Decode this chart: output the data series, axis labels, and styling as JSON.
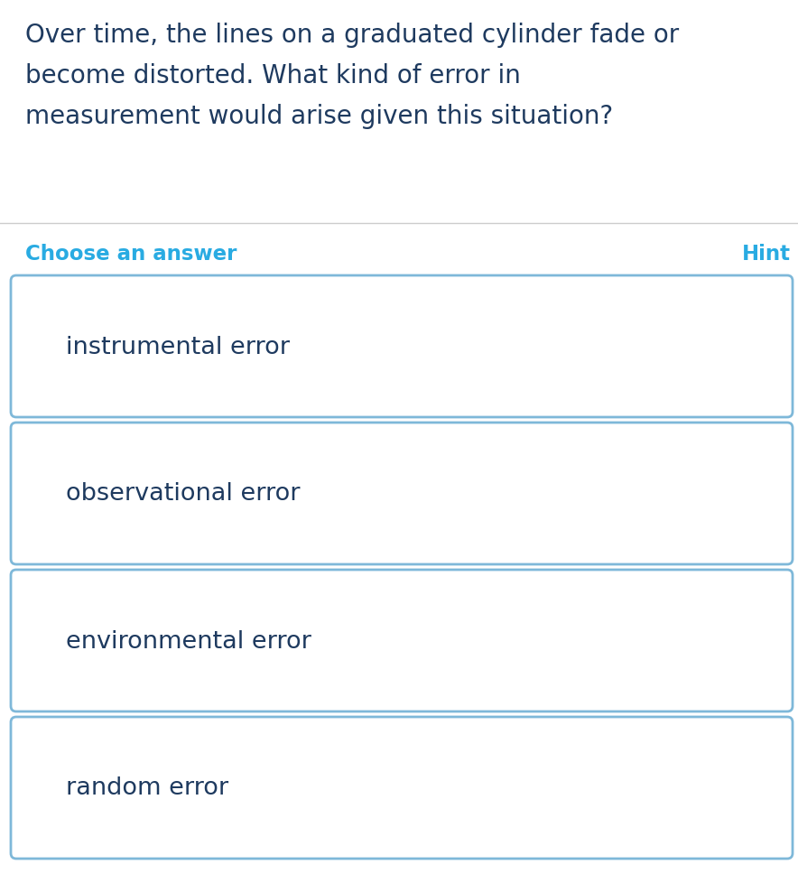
{
  "question_line1": "Over time, the lines on a graduated cylinder fade or",
  "question_line2": "become distorted. What kind of error in",
  "question_line3": "measurement would arise given this situation?",
  "question_color": "#1e3a5f",
  "choose_label": "Choose an answer",
  "hint_label": "Hint",
  "label_color": "#29ABE2",
  "choices": [
    "instrumental error",
    "observational error",
    "environmental error",
    "random error"
  ],
  "choice_text_color": "#1e3a5f",
  "box_border_color": "#7EB8D9",
  "box_fill_color": "#ffffff",
  "background_color": "#ffffff",
  "separator_color": "#cccccc",
  "question_fontsize": 20,
  "label_fontsize": 16.5,
  "choice_fontsize": 19.5,
  "hint_fontsize": 16.5
}
